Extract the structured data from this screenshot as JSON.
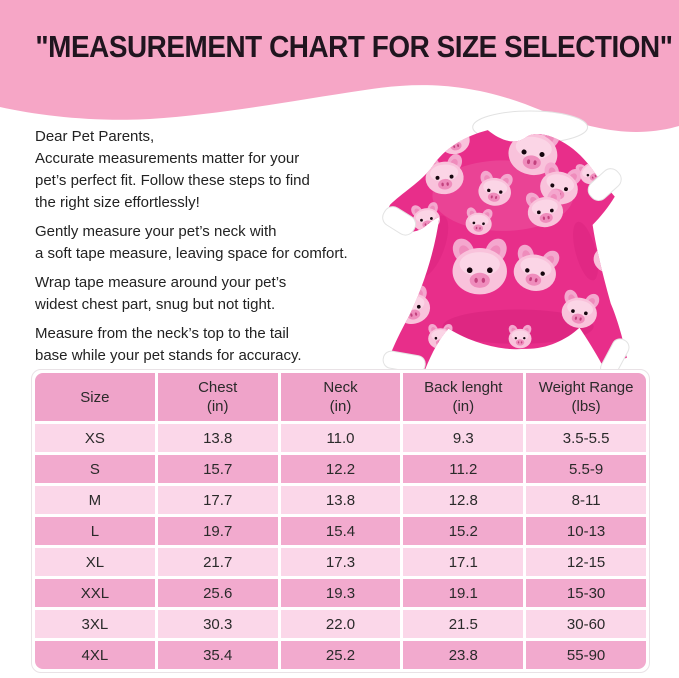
{
  "theme": {
    "banner-pink": "#F6A6C6",
    "header-pink": "#EFA3C9",
    "row-dark": "#F2AACE",
    "row-light": "#FBD7E9",
    "body-pink": "#E82E8A",
    "pig-light": "#F9C2DB",
    "pig-mid": "#F4A7CE",
    "pig-snout": "#EF8CBC",
    "pig-dark": "#C2427E",
    "text-dark": "#1F1F1F"
  },
  "banner": {
    "title": "\"MEASUREMENT CHART FOR SIZE SELECTION\""
  },
  "intro": {
    "paragraphs": [
      "Dear Pet Parents,\nAccurate measurements matter for your\npet’s perfect fit. Follow these steps to find\nthe right size effortlessly!",
      "Gently measure your pet’s neck with\na soft tape measure, leaving space for comfort.",
      "Wrap tape measure around your pet’s\nwidest chest part, snug but not tight.",
      "Measure from the neck’s top to the tail\nbase while your pet stands for accuracy."
    ]
  },
  "size_chart": {
    "columns": [
      {
        "label": "Size",
        "unit": ""
      },
      {
        "label": "Chest",
        "unit": "(in)"
      },
      {
        "label": "Neck",
        "unit": "(in)"
      },
      {
        "label": "Back lenght",
        "unit": "(in)"
      },
      {
        "label": "Weight Range",
        "unit": "(lbs)"
      }
    ],
    "rows": [
      [
        "XS",
        "13.8",
        "11.0",
        "9.3",
        "3.5-5.5"
      ],
      [
        "S",
        "15.7",
        "12.2",
        "11.2",
        "5.5-9"
      ],
      [
        "M",
        "17.7",
        "13.8",
        "12.8",
        "8-11"
      ],
      [
        "L",
        "19.7",
        "15.4",
        "15.2",
        "10-13"
      ],
      [
        "XL",
        "21.7",
        "17.3",
        "17.1",
        "12-15"
      ],
      [
        "XXL",
        "25.6",
        "19.3",
        "19.1",
        "15-30"
      ],
      [
        "3XL",
        "30.3",
        "22.0",
        "21.5",
        "30-60"
      ],
      [
        "4XL",
        "35.4",
        "25.2",
        "23.8",
        "55-90"
      ]
    ]
  }
}
